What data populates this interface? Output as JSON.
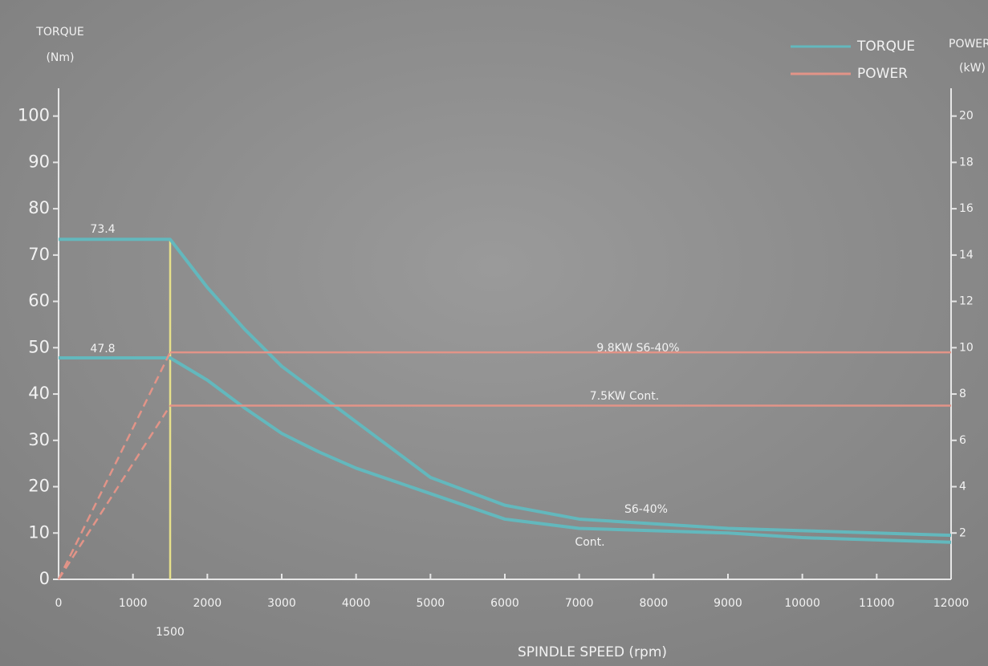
{
  "chart_data": {
    "type": "line",
    "y_title": "TORQUE",
    "y_unit": "(Nm)",
    "y2_title": "POWER",
    "y2_unit": "(kW)",
    "x_title": "SPINDLE SPEED (rpm)",
    "xlim": [
      0,
      12000
    ],
    "xticks": [
      0,
      1000,
      2000,
      3000,
      4000,
      5000,
      6000,
      7000,
      8000,
      9000,
      10000,
      11000,
      12000
    ],
    "ylim": [
      0,
      106
    ],
    "yticks": [
      0,
      10,
      20,
      30,
      40,
      50,
      60,
      70,
      80,
      90,
      100
    ],
    "y2lim": [
      0,
      21.2
    ],
    "y2ticks": [
      2,
      4,
      6,
      8,
      10,
      12,
      14,
      16,
      18,
      20
    ],
    "reference_x": 1500,
    "reference_color": "#e6e08a",
    "legend": [
      {
        "name": "TORQUE",
        "color": "#63b8bd"
      },
      {
        "name": "POWER",
        "color": "#e29488"
      }
    ],
    "series": [
      {
        "label": "S6-40%",
        "color": "#63b8bd",
        "axis": "y",
        "x": [
          0,
          1500,
          2000,
          2500,
          3000,
          3500,
          4000,
          5000,
          6000,
          7000,
          8000,
          9000,
          10000,
          11000,
          12000
        ],
        "values": [
          73.4,
          73.4,
          63,
          54,
          46,
          40,
          34,
          22,
          16,
          13,
          12,
          11,
          10.5,
          10,
          9.5
        ]
      },
      {
        "label": "Cont.",
        "color": "#63b8bd",
        "axis": "y",
        "x": [
          0,
          1500,
          2000,
          2500,
          3000,
          3500,
          4000,
          5000,
          6000,
          7000,
          8000,
          9000,
          10000,
          11000,
          12000
        ],
        "values": [
          47.8,
          47.8,
          43,
          37,
          31.5,
          27.5,
          24,
          18.5,
          13,
          11,
          10.5,
          10,
          9,
          8.5,
          8
        ]
      },
      {
        "label": "9.8KW S6-40%",
        "color": "#e29488",
        "axis": "y2",
        "ramp_style": "dashed",
        "x": [
          0,
          1500,
          12000
        ],
        "values": [
          0,
          9.8,
          9.8
        ]
      },
      {
        "label": "7.5KW Cont.",
        "color": "#e29488",
        "axis": "y2",
        "ramp_style": "dashed",
        "x": [
          0,
          1500,
          12000
        ],
        "values": [
          0,
          7.5,
          7.5
        ]
      }
    ]
  }
}
